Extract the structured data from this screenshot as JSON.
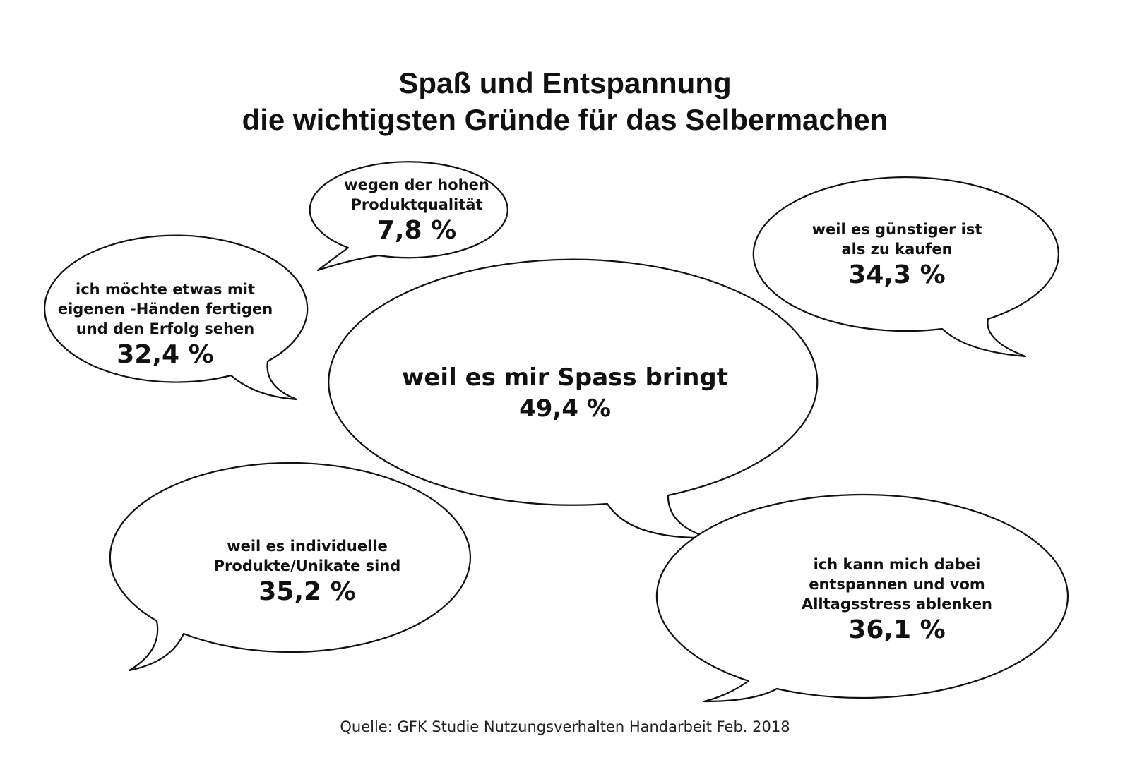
{
  "title": {
    "line1": "Spaß und Entspannung",
    "line2": "die wichtigsten Gründe für das Selbermachen"
  },
  "bubbles": {
    "quality": {
      "label": "wegen der hohen\nProduktqualität",
      "value": "7,8 %"
    },
    "cheaper": {
      "label": "weil es günstiger ist\nals zu kaufen",
      "value": "34,3 %"
    },
    "own_hands": {
      "label": "ich möchte etwas mit\neigenen -Händen fertigen\nund den Erfolg  sehen",
      "value": "32,4 %"
    },
    "fun": {
      "label": "weil es mir Spass bringt",
      "value": "49,4 %"
    },
    "unique": {
      "label": "weil es individuelle\nProdukte/Unikate sind",
      "value": "35,2 %"
    },
    "relax": {
      "label": "ich kann mich dabei\nentspannen und vom\nAlltagsstress ablenken",
      "value": "36,1 %"
    }
  },
  "source": "Quelle: GFK Studie Nutzungsverhalten Handarbeit Feb. 2018"
}
